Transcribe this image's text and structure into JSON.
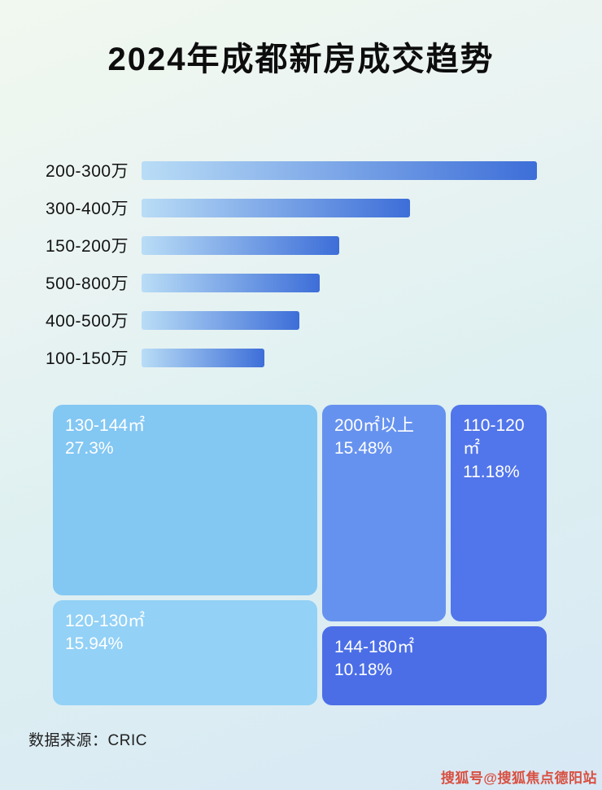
{
  "page": {
    "title": "2024年成都新房成交趋势",
    "source": "数据来源：CRIC",
    "watermark": "搜狐号@搜狐焦点德阳站"
  },
  "chart_data": [
    {
      "type": "bar",
      "orientation": "horizontal",
      "title": "2024年成都新房成交趋势",
      "categories": [
        "200-300万",
        "300-400万",
        "150-200万",
        "500-800万",
        "400-500万",
        "100-150万"
      ],
      "values": [
        100,
        68,
        50,
        45,
        40,
        31
      ],
      "value_unit": "relative length, % of longest bar (no numeric axis shown in image)",
      "bar_color_start": "#b9ddf6",
      "bar_color_end": "#3d6ed8",
      "legend": "none",
      "grid": false
    },
    {
      "type": "treemap",
      "blocks": [
        {
          "label": "130-144㎡",
          "value_pct": 27.3,
          "display": "27.3%",
          "color": "#83c7f3"
        },
        {
          "label": "120-130㎡",
          "value_pct": 15.94,
          "display": "15.94%",
          "color": "#93d1f6"
        },
        {
          "label": "200㎡以上",
          "value_pct": 15.48,
          "display": "15.48%",
          "color": "#6692ef"
        },
        {
          "label": "110-120㎡",
          "value_pct": 11.18,
          "display": "11.18%",
          "color": "#5175ea"
        },
        {
          "label": "144-180㎡",
          "value_pct": 10.18,
          "display": "10.18%",
          "color": "#4b6ee7"
        }
      ]
    }
  ]
}
